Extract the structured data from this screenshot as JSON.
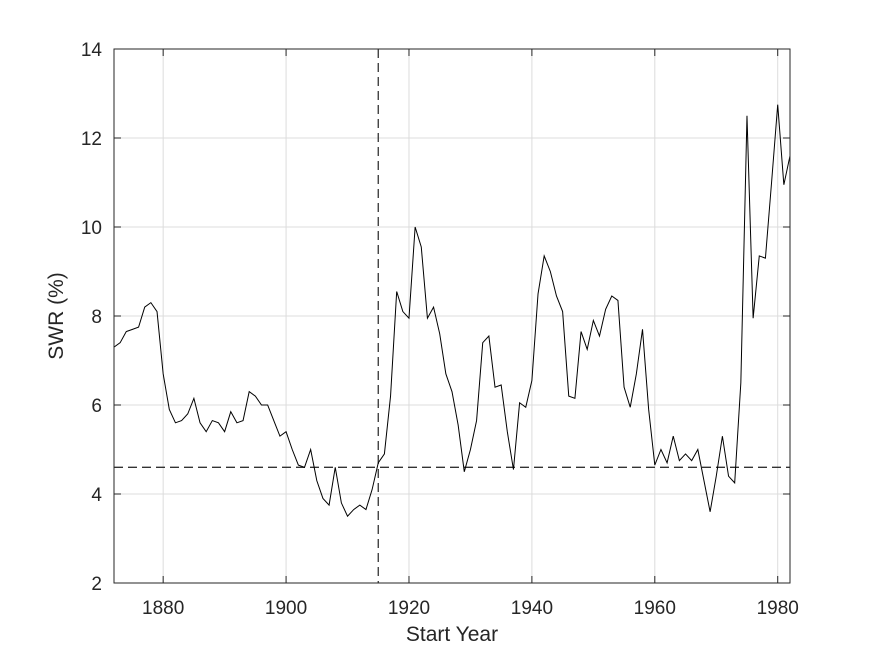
{
  "chart_data": {
    "type": "line",
    "xlabel": "Start Year",
    "ylabel": "SWR (%)",
    "xlim": [
      1872,
      1982
    ],
    "ylim": [
      2,
      14
    ],
    "xticks": [
      1880,
      1900,
      1920,
      1940,
      1960,
      1980
    ],
    "yticks": [
      2,
      4,
      6,
      8,
      10,
      12,
      14
    ],
    "grid": true,
    "line_color": "#000000",
    "reference_lines": {
      "vertical_x": 1915,
      "horizontal_y": 4.6,
      "style": "dashed"
    },
    "series": [
      {
        "x": [
          1872,
          1873,
          1874,
          1875,
          1876,
          1877,
          1878,
          1879,
          1880,
          1881,
          1882,
          1883,
          1884,
          1885,
          1886,
          1887,
          1888,
          1889,
          1890,
          1891,
          1892,
          1893,
          1894,
          1895,
          1896,
          1897,
          1898,
          1899,
          1900,
          1901,
          1902,
          1903,
          1904,
          1905,
          1906,
          1907,
          1908,
          1909,
          1910,
          1911,
          1912,
          1913,
          1914,
          1915,
          1916,
          1917,
          1918,
          1919,
          1920,
          1921,
          1922,
          1923,
          1924,
          1925,
          1926,
          1927,
          1928,
          1929,
          1930,
          1931,
          1932,
          1933,
          1934,
          1935,
          1936,
          1937,
          1938,
          1939,
          1940,
          1941,
          1942,
          1943,
          1944,
          1945,
          1946,
          1947,
          1948,
          1949,
          1950,
          1951,
          1952,
          1953,
          1954,
          1955,
          1956,
          1957,
          1958,
          1959,
          1960,
          1961,
          1962,
          1963,
          1964,
          1965,
          1966,
          1967,
          1968,
          1969,
          1970,
          1971,
          1972,
          1973,
          1974,
          1975,
          1976,
          1977,
          1978,
          1979,
          1980,
          1981,
          1982
        ],
        "values": [
          7.3,
          7.4,
          7.65,
          7.7,
          7.75,
          8.2,
          8.3,
          8.1,
          6.7,
          5.9,
          5.6,
          5.65,
          5.8,
          6.15,
          5.6,
          5.4,
          5.65,
          5.6,
          5.4,
          5.85,
          5.6,
          5.65,
          6.3,
          6.2,
          6.0,
          6.0,
          5.65,
          5.3,
          5.4,
          5.0,
          4.65,
          4.6,
          5.0,
          4.3,
          3.9,
          3.75,
          4.6,
          3.8,
          3.5,
          3.65,
          3.75,
          3.65,
          4.1,
          4.7,
          4.9,
          6.2,
          8.55,
          8.1,
          7.95,
          10.0,
          9.55,
          7.95,
          8.2,
          7.6,
          6.7,
          6.3,
          5.55,
          4.5,
          5.0,
          5.65,
          7.4,
          7.55,
          6.4,
          6.45,
          5.4,
          4.55,
          6.05,
          5.95,
          6.55,
          8.5,
          9.35,
          9.0,
          8.45,
          8.1,
          6.2,
          6.15,
          7.65,
          7.25,
          7.9,
          7.55,
          8.15,
          8.45,
          8.35,
          6.4,
          5.95,
          6.7,
          7.7,
          5.9,
          4.65,
          5.0,
          4.7,
          5.3,
          4.75,
          4.9,
          4.75,
          5.0,
          4.3,
          3.6,
          4.4,
          5.3,
          4.4,
          4.25,
          6.5,
          12.5,
          7.95,
          9.35,
          9.3,
          11.0,
          12.75,
          10.95,
          11.6
        ]
      }
    ]
  }
}
